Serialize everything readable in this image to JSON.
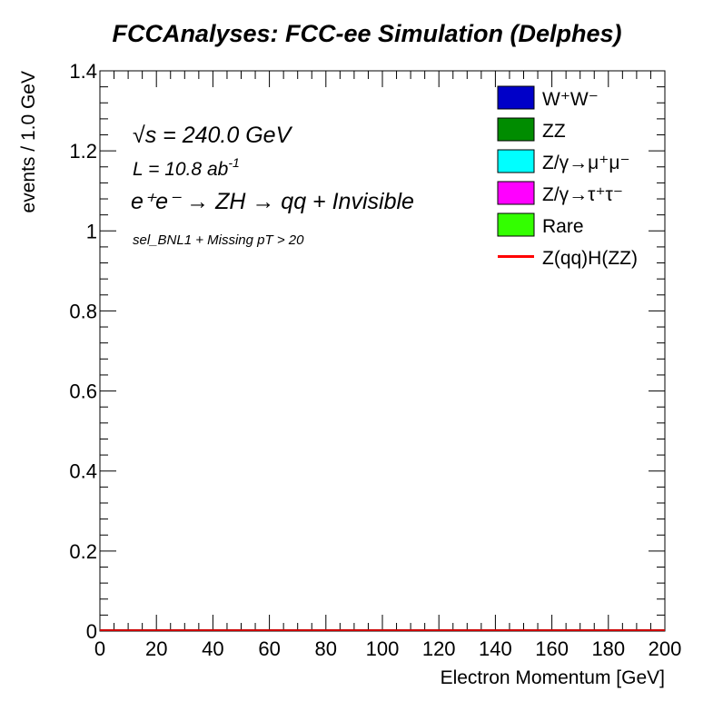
{
  "chart_data": {
    "type": "histogram",
    "title": "FCCAnalyses: FCC-ee Simulation (Delphes)",
    "xlabel": "Electron Momentum [GeV]",
    "ylabel": "events / 1.0 GeV",
    "xlim": [
      0,
      200
    ],
    "ylim": [
      0,
      1.4
    ],
    "xticks": [
      "0",
      "20",
      "40",
      "60",
      "80",
      "100",
      "120",
      "140",
      "160",
      "180",
      "200"
    ],
    "yticks": [
      "0",
      "0.2",
      "0.4",
      "0.6",
      "0.8",
      "1",
      "1.2",
      "1.4"
    ],
    "annotations": {
      "energy_sqrt": "√s",
      "energy_value": " = 240.0 GeV",
      "lumi_prefix": "L = 10.8 ab",
      "lumi_sup": "-1",
      "process": "e⁺e⁻ → ZH → qq + Invisible",
      "selection": "sel_BNL1 + Missing pT > 20"
    },
    "legend_position": "top-right",
    "series": [
      {
        "name": "W⁺W⁻",
        "style": "fill",
        "color": "#0000c8",
        "values": "all bins 0"
      },
      {
        "name": "ZZ",
        "style": "fill",
        "color": "#008c00",
        "values": "all bins 0"
      },
      {
        "name": "Z/γ→μ⁺μ⁻",
        "style": "fill",
        "color": "#00ffff",
        "values": "all bins 0"
      },
      {
        "name": "Z/γ→τ⁺τ⁻",
        "style": "fill",
        "color": "#ff00ff",
        "values": "all bins 0"
      },
      {
        "name": "Rare",
        "style": "fill",
        "color": "#33ff00",
        "values": "all bins 0"
      },
      {
        "name": "Z(qq)H(ZZ)",
        "style": "line",
        "color": "#ff0000",
        "values": "all bins 0"
      }
    ],
    "signal_line_value": 0,
    "grid": false
  }
}
